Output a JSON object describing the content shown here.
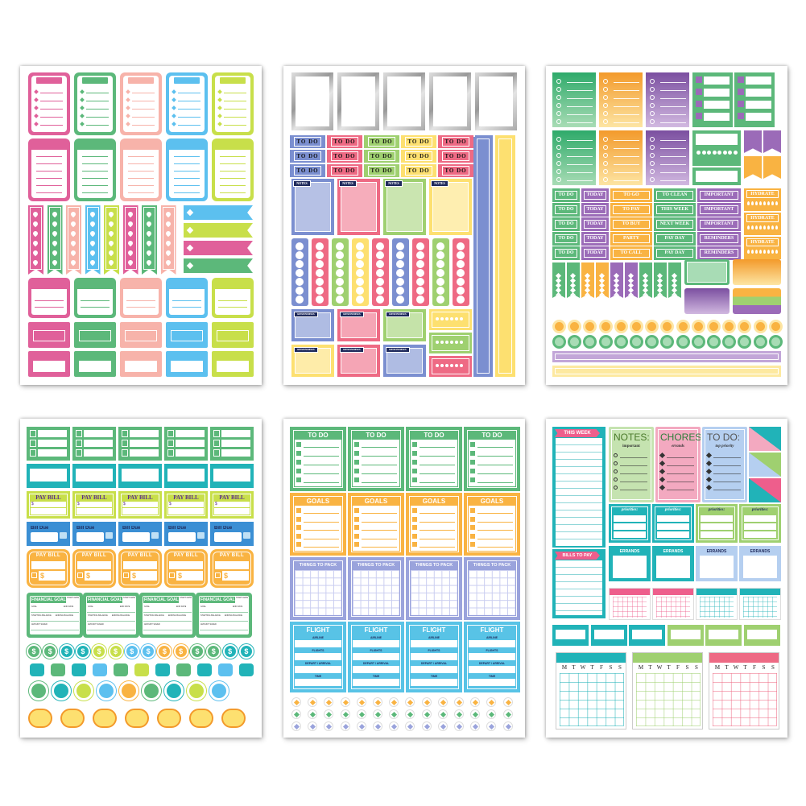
{
  "colors": {
    "pink": "#e0609a",
    "green": "#5cb87a",
    "peach": "#f7b3aa",
    "blue": "#5cc0ef",
    "lime": "#c8df4a",
    "periwinkle": "#7b8fd0",
    "red": "#ee6a84",
    "lightgreen": "#9fd070",
    "yellow": "#fde070",
    "orange": "#f9b342",
    "purple": "#9b6bb8",
    "teal": "#21b3b8",
    "skyblue": "#58c3e6",
    "lavender": "#9aa3dc",
    "navy": "#1f2a5c"
  },
  "sheet2": {
    "todo_label": "TO DO",
    "notes_label": "NOTES",
    "reminder_label": "REMINDERS"
  },
  "sheet3": {
    "labels": [
      [
        "TO DO",
        "TODAY",
        "TO GO",
        "TO CLEAN",
        "IMPORTANT"
      ],
      [
        "TO DO",
        "TODAY",
        "TO PAY",
        "THIS WEEK",
        "IMPORTANT"
      ],
      [
        "TO DO",
        "TODAY",
        "TO BUY",
        "NEXT WEEK",
        "IMPORTANT"
      ],
      [
        "TO DO",
        "TODAY",
        "PARTY",
        "PAY DAY",
        "REMINDERS"
      ],
      [
        "TO DO",
        "TODAY",
        "TO CALL",
        "PAY DAY",
        "REMINDERS"
      ]
    ],
    "hydrate_label": "HYDRATE"
  },
  "sheet4": {
    "pay_bill_label": "PAY BILL",
    "bill_due_label": "Bill Due",
    "currency_symbol": "$",
    "financial_goal_label": "FINANCIAL GOAL",
    "goal_fields": [
      "START DATE",
      "GOAL",
      "END DATE",
      "STARTING BALANCE",
      "ENDING BALANCE",
      "AMOUNT SAVED"
    ]
  },
  "sheet5": {
    "todo_label": "TO DO",
    "goals_label": "GOALS",
    "pack_label": "THINGS TO PACK",
    "flight_label": "FLIGHT",
    "flight_fields": [
      "AIRLINE",
      "FLIGHTS",
      "DEPART / ARRIVAL",
      "TIME"
    ]
  },
  "sheet6": {
    "this_week_label": "THIS WEEK",
    "bills_label": "BILLS TO PAY",
    "notes_title": "NOTES:",
    "notes_sub": "important",
    "chores_title": "CHORES:",
    "chores_sub": "errands",
    "todo_title": "TO DO:",
    "todo_sub": "top priority",
    "priorities_label": "priorities:",
    "errands_label": "ERRANDS",
    "weekdays": [
      "M",
      "T",
      "W",
      "T",
      "F",
      "S",
      "S"
    ]
  }
}
